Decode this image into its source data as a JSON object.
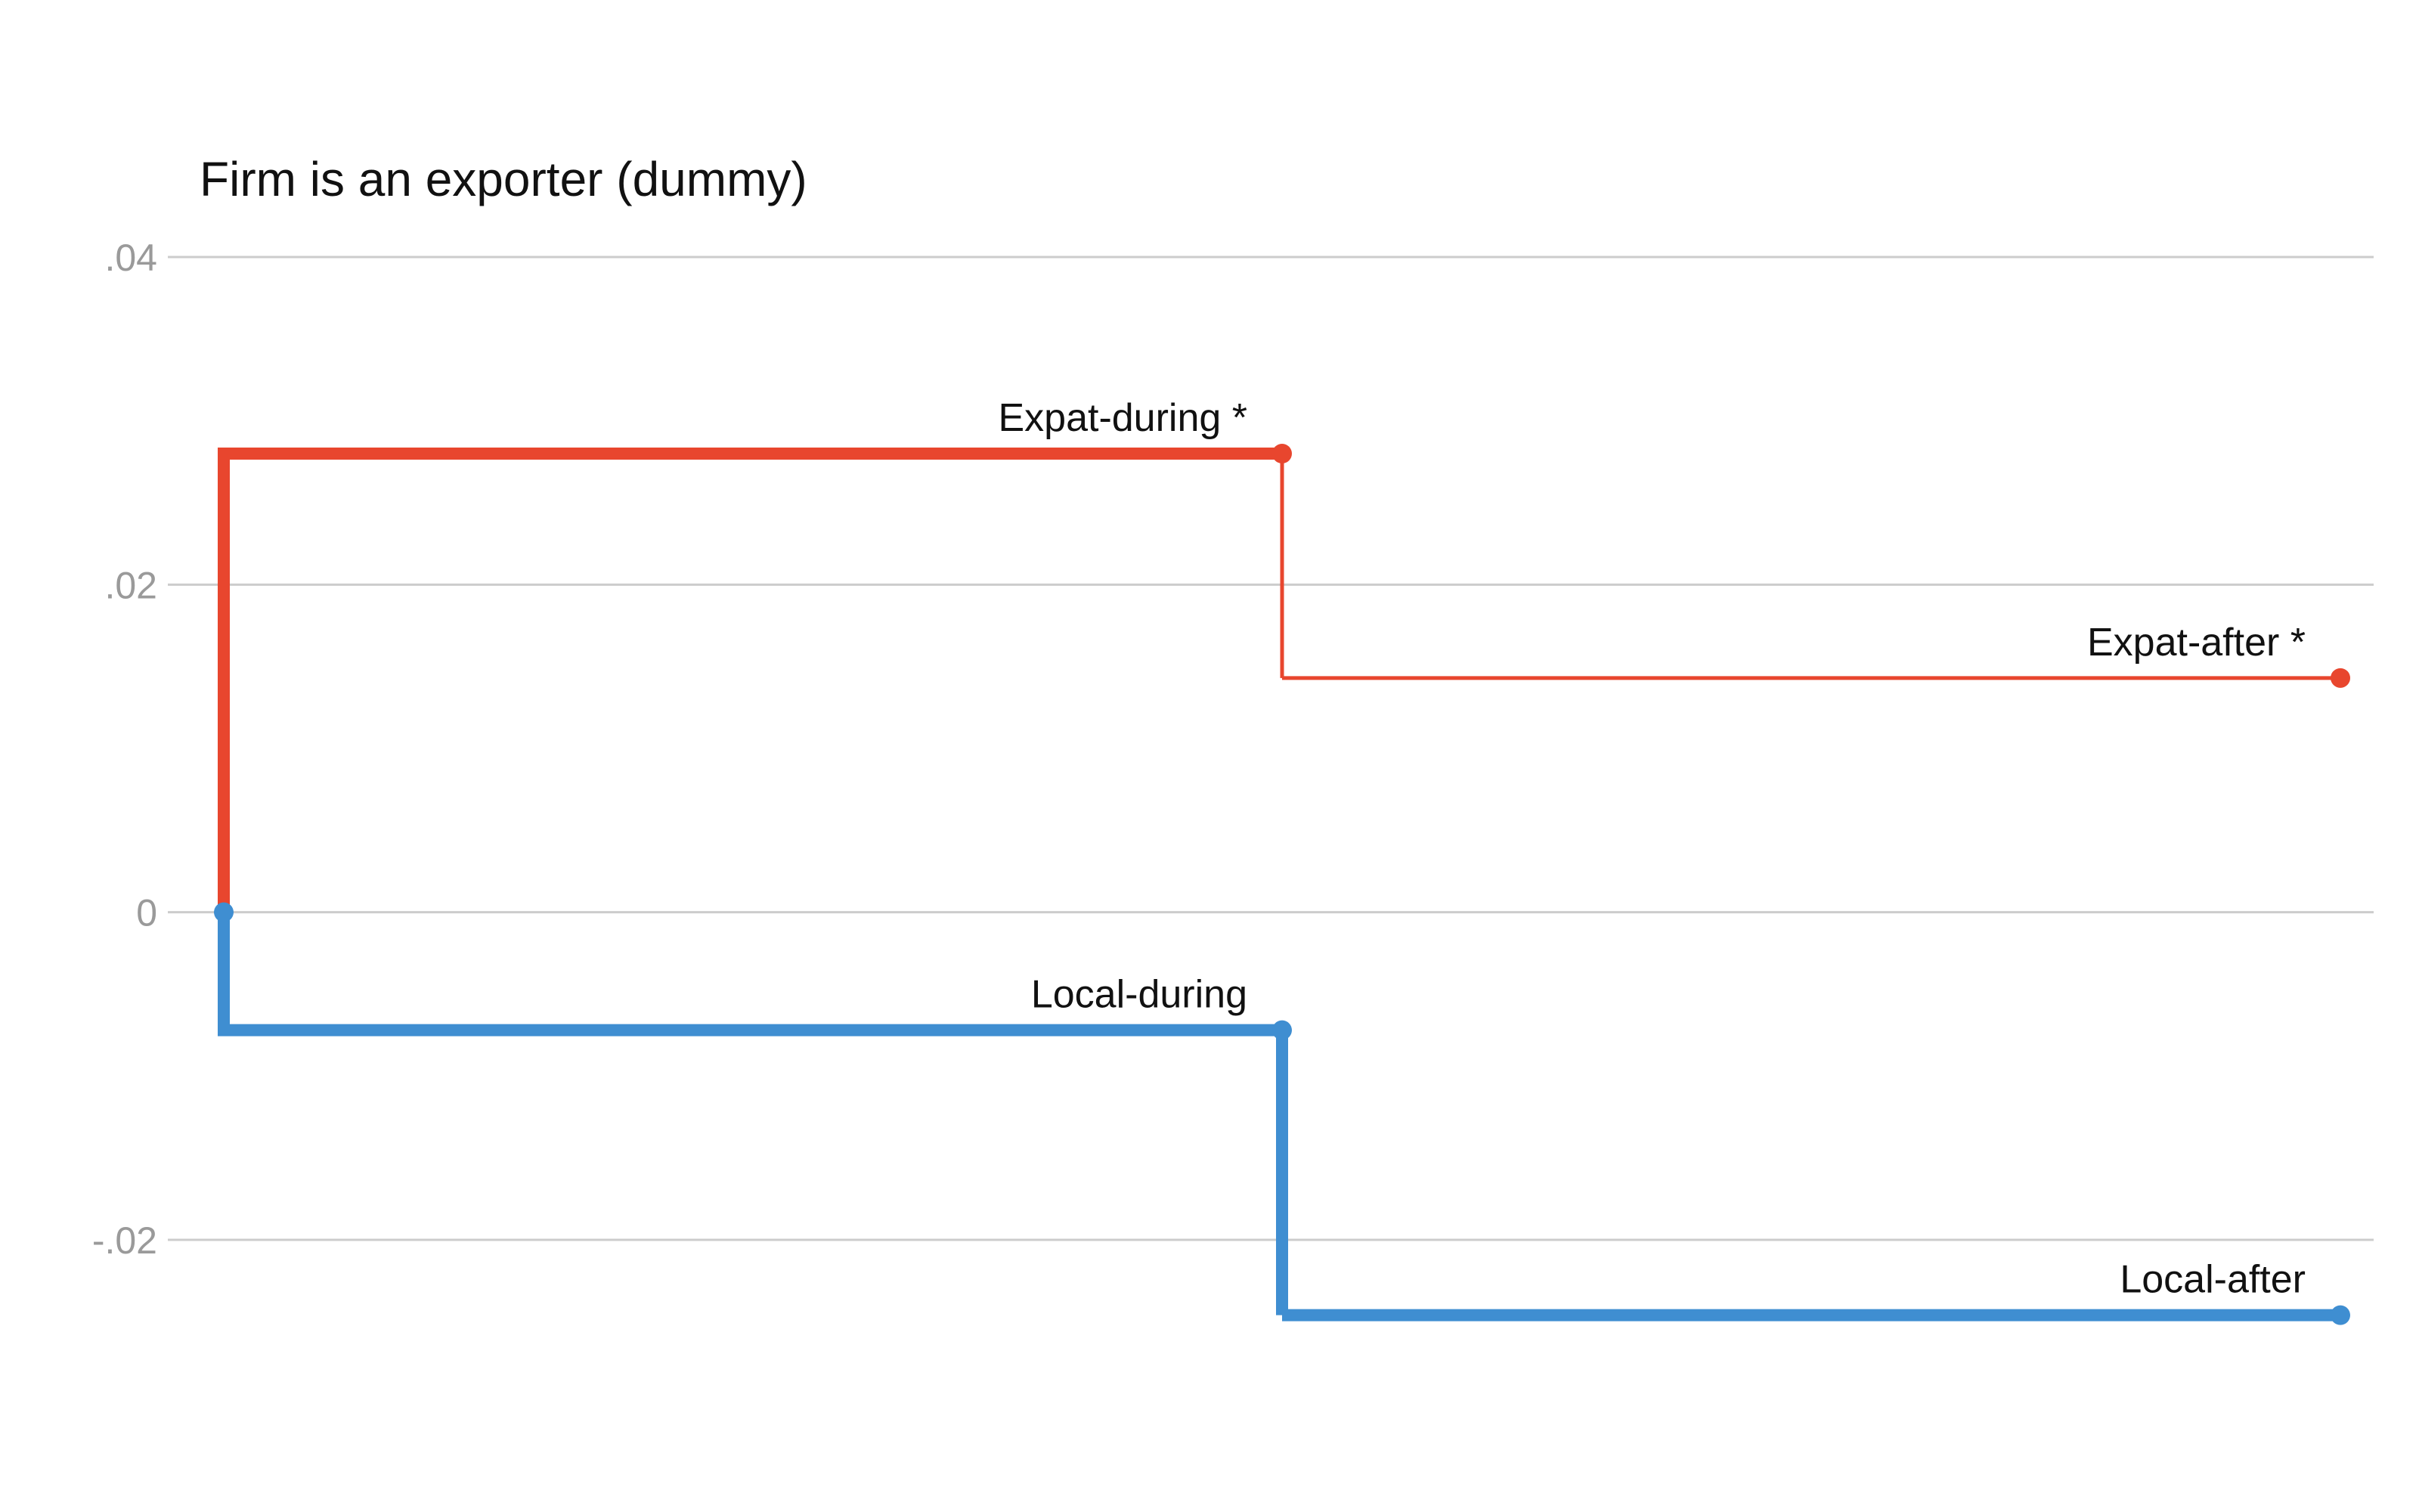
{
  "chart_data": {
    "type": "line",
    "title": "Firm is an exporter (dummy)",
    "xlabel": "",
    "ylabel": "",
    "ylim": [
      -0.028,
      0.04
    ],
    "yticks": [
      {
        "value": 0.04,
        "label": ".04"
      },
      {
        "value": 0.02,
        "label": ".02"
      },
      {
        "value": 0,
        "label": "0"
      },
      {
        "value": -0.02,
        "label": "-.02"
      }
    ],
    "grid": true,
    "colors": {
      "expat": "#e8462e",
      "local": "#3f8ed1"
    },
    "series": [
      {
        "key": "expat",
        "points": [
          {
            "y": 0,
            "label": ""
          },
          {
            "y": 0.028,
            "label": "Expat-during *"
          },
          {
            "y": 0.0143,
            "label": "Expat-after *"
          }
        ]
      },
      {
        "key": "local",
        "points": [
          {
            "y": 0,
            "label": ""
          },
          {
            "y": -0.0072,
            "label": "Local-during"
          },
          {
            "y": -0.0246,
            "label": "Local-after"
          }
        ]
      }
    ]
  }
}
